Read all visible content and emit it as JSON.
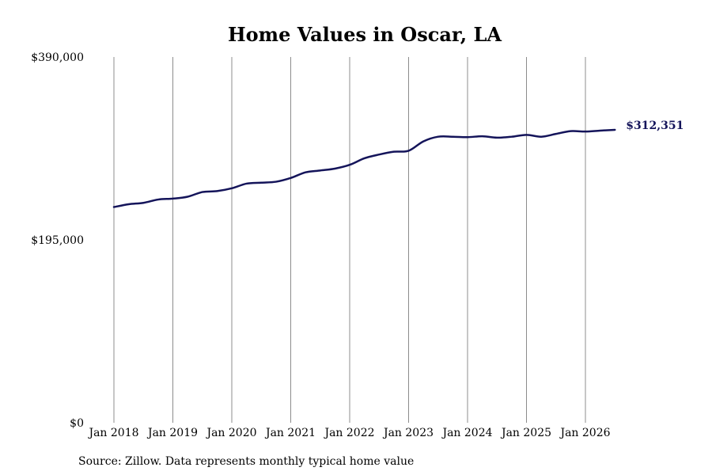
{
  "source_note": "Source: Zillow. Data represents monthly typical home value",
  "colors": {
    "line": "#14145a",
    "grid": "#8c8c8c",
    "text": "#000000"
  },
  "chart_data": {
    "type": "line",
    "title": "Home Values in Oscar, LA",
    "xlabel": "",
    "ylabel": "",
    "ylim": [
      0,
      390000
    ],
    "y_ticks": [
      {
        "value": 0,
        "label": "$0"
      },
      {
        "value": 195000,
        "label": "$195,000"
      },
      {
        "value": 390000,
        "label": "$390,000"
      }
    ],
    "x_ticks": [
      {
        "value": "2018-01",
        "label": "Jan 2018"
      },
      {
        "value": "2019-01",
        "label": "Jan 2019"
      },
      {
        "value": "2020-01",
        "label": "Jan 2020"
      },
      {
        "value": "2021-01",
        "label": "Jan 2021"
      },
      {
        "value": "2022-01",
        "label": "Jan 2022"
      },
      {
        "value": "2023-01",
        "label": "Jan 2023"
      },
      {
        "value": "2024-01",
        "label": "Jan 2024"
      },
      {
        "value": "2025-01",
        "label": "Jan 2025"
      },
      {
        "value": "2026-01",
        "label": "Jan 2026"
      }
    ],
    "xlim": [
      "2018-01",
      "2026-07"
    ],
    "grid": "vertical",
    "end_label": "$312,351",
    "series": [
      {
        "x": [
          "2018-01",
          "2018-04",
          "2018-07",
          "2018-10",
          "2019-01",
          "2019-04",
          "2019-07",
          "2019-10",
          "2020-01",
          "2020-04",
          "2020-07",
          "2020-10",
          "2021-01",
          "2021-04",
          "2021-07",
          "2021-10",
          "2022-01",
          "2022-04",
          "2022-07",
          "2022-10",
          "2023-01",
          "2023-04",
          "2023-07",
          "2023-10",
          "2024-01",
          "2024-04",
          "2024-07",
          "2024-10",
          "2025-01",
          "2025-04",
          "2025-07",
          "2025-10",
          "2026-01",
          "2026-04",
          "2026-07"
        ],
        "values": [
          230000,
          233000,
          234500,
          238000,
          239000,
          241000,
          246000,
          247000,
          250000,
          255000,
          256000,
          257000,
          261000,
          267000,
          269000,
          271000,
          275000,
          282000,
          286000,
          289000,
          290000,
          300000,
          305000,
          305000,
          304500,
          305500,
          304000,
          305000,
          307000,
          305000,
          308000,
          311000,
          310500,
          311500,
          312351
        ]
      }
    ]
  }
}
